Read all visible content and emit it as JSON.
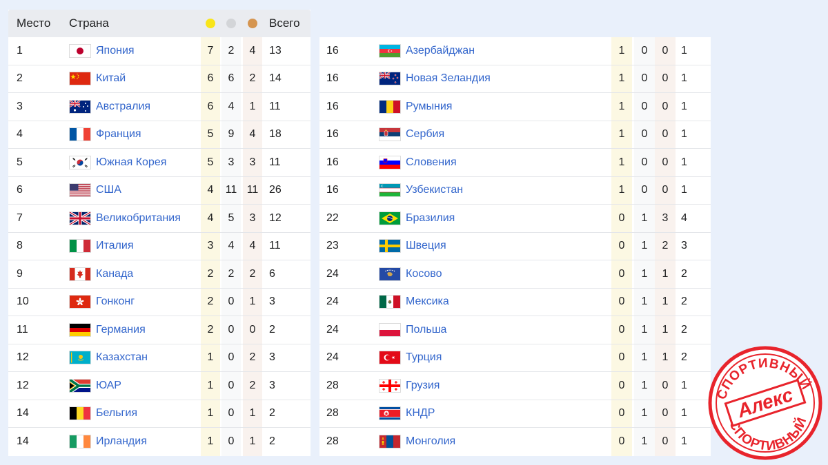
{
  "header": {
    "rank_label": "Место",
    "country_label": "Страна",
    "total_label": "Всего",
    "gold_color": "#f9e51a",
    "silver_color": "#d3d5d8",
    "bronze_color": "#d59550"
  },
  "left_rows": [
    {
      "rank": "1",
      "country": "Япония",
      "flag": "japan-flag",
      "gold": "7",
      "silver": "2",
      "bronze": "4",
      "total": "13"
    },
    {
      "rank": "2",
      "country": "Китай",
      "flag": "china-flag",
      "gold": "6",
      "silver": "6",
      "bronze": "2",
      "total": "14"
    },
    {
      "rank": "3",
      "country": "Австралия",
      "flag": "australia-flag",
      "gold": "6",
      "silver": "4",
      "bronze": "1",
      "total": "11"
    },
    {
      "rank": "4",
      "country": "Франция",
      "flag": "france-flag",
      "gold": "5",
      "silver": "9",
      "bronze": "4",
      "total": "18"
    },
    {
      "rank": "5",
      "country": "Южная Корея",
      "flag": "south-korea-flag",
      "gold": "5",
      "silver": "3",
      "bronze": "3",
      "total": "11"
    },
    {
      "rank": "6",
      "country": "США",
      "flag": "usa-flag",
      "gold": "4",
      "silver": "11",
      "bronze": "11",
      "total": "26"
    },
    {
      "rank": "7",
      "country": "Великобритания",
      "flag": "uk-flag",
      "gold": "4",
      "silver": "5",
      "bronze": "3",
      "total": "12"
    },
    {
      "rank": "8",
      "country": "Италия",
      "flag": "italy-flag",
      "gold": "3",
      "silver": "4",
      "bronze": "4",
      "total": "11"
    },
    {
      "rank": "9",
      "country": "Канада",
      "flag": "canada-flag",
      "gold": "2",
      "silver": "2",
      "bronze": "2",
      "total": "6"
    },
    {
      "rank": "10",
      "country": "Гонконг",
      "flag": "hong-kong-flag",
      "gold": "2",
      "silver": "0",
      "bronze": "1",
      "total": "3"
    },
    {
      "rank": "11",
      "country": "Германия",
      "flag": "germany-flag",
      "gold": "2",
      "silver": "0",
      "bronze": "0",
      "total": "2"
    },
    {
      "rank": "12",
      "country": "Казахстан",
      "flag": "kazakhstan-flag",
      "gold": "1",
      "silver": "0",
      "bronze": "2",
      "total": "3"
    },
    {
      "rank": "12",
      "country": "ЮАР",
      "flag": "south-africa-flag",
      "gold": "1",
      "silver": "0",
      "bronze": "2",
      "total": "3"
    },
    {
      "rank": "14",
      "country": "Бельгия",
      "flag": "belgium-flag",
      "gold": "1",
      "silver": "0",
      "bronze": "1",
      "total": "2"
    },
    {
      "rank": "14",
      "country": "Ирландия",
      "flag": "ireland-flag",
      "gold": "1",
      "silver": "0",
      "bronze": "1",
      "total": "2"
    }
  ],
  "right_rows": [
    {
      "rank": "16",
      "country": "Азербайджан",
      "flag": "azerbaijan-flag",
      "gold": "1",
      "silver": "0",
      "bronze": "0",
      "total": "1"
    },
    {
      "rank": "16",
      "country": "Новая Зеландия",
      "flag": "new-zealand-flag",
      "gold": "1",
      "silver": "0",
      "bronze": "0",
      "total": "1"
    },
    {
      "rank": "16",
      "country": "Румыния",
      "flag": "romania-flag",
      "gold": "1",
      "silver": "0",
      "bronze": "0",
      "total": "1"
    },
    {
      "rank": "16",
      "country": "Сербия",
      "flag": "serbia-flag",
      "gold": "1",
      "silver": "0",
      "bronze": "0",
      "total": "1"
    },
    {
      "rank": "16",
      "country": "Словения",
      "flag": "slovenia-flag",
      "gold": "1",
      "silver": "0",
      "bronze": "0",
      "total": "1"
    },
    {
      "rank": "16",
      "country": "Узбекистан",
      "flag": "uzbekistan-flag",
      "gold": "1",
      "silver": "0",
      "bronze": "0",
      "total": "1"
    },
    {
      "rank": "22",
      "country": "Бразилия",
      "flag": "brazil-flag",
      "gold": "0",
      "silver": "1",
      "bronze": "3",
      "total": "4"
    },
    {
      "rank": "23",
      "country": "Швеция",
      "flag": "sweden-flag",
      "gold": "0",
      "silver": "1",
      "bronze": "2",
      "total": "3"
    },
    {
      "rank": "24",
      "country": "Косово",
      "flag": "kosovo-flag",
      "gold": "0",
      "silver": "1",
      "bronze": "1",
      "total": "2"
    },
    {
      "rank": "24",
      "country": "Мексика",
      "flag": "mexico-flag",
      "gold": "0",
      "silver": "1",
      "bronze": "1",
      "total": "2"
    },
    {
      "rank": "24",
      "country": "Польша",
      "flag": "poland-flag",
      "gold": "0",
      "silver": "1",
      "bronze": "1",
      "total": "2"
    },
    {
      "rank": "24",
      "country": "Турция",
      "flag": "turkey-flag",
      "gold": "0",
      "silver": "1",
      "bronze": "1",
      "total": "2"
    },
    {
      "rank": "28",
      "country": "Грузия",
      "flag": "georgia-flag",
      "gold": "0",
      "silver": "1",
      "bronze": "0",
      "total": "1"
    },
    {
      "rank": "28",
      "country": "КНДР",
      "flag": "north-korea-flag",
      "gold": "0",
      "silver": "1",
      "bronze": "0",
      "total": "1"
    },
    {
      "rank": "28",
      "country": "Монголия",
      "flag": "mongolia-flag",
      "gold": "0",
      "silver": "1",
      "bronze": "0",
      "total": "1"
    }
  ],
  "stamp": {
    "top_text": "СПОРТИВНЫЙ",
    "bottom_text": "СПОРТИВНЫЙ",
    "center_text": "Алекс",
    "color": "#e8242c"
  }
}
